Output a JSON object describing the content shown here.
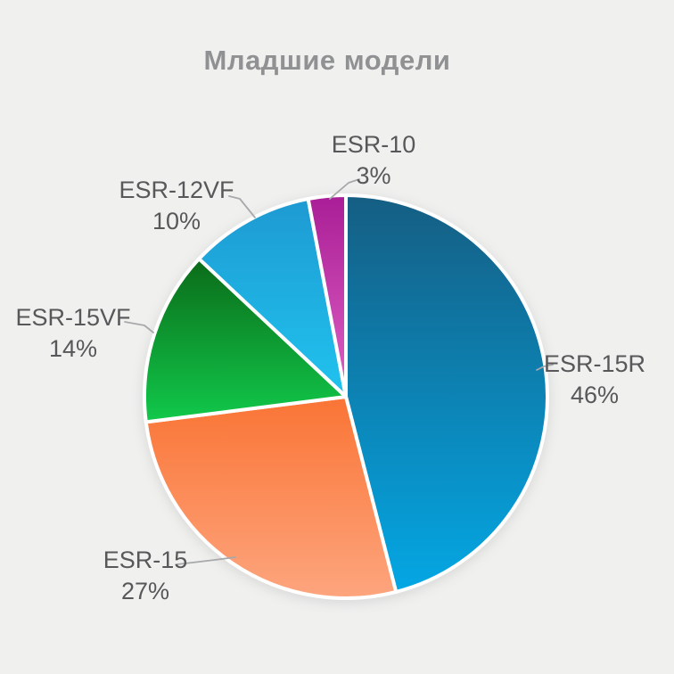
{
  "chart_data": {
    "type": "pie",
    "title": "Младшие модели",
    "unit": "%",
    "direction": "clockwise",
    "start_angle_deg": 0,
    "legend_position": "none",
    "labels_position": "outside-with-leader-lines",
    "categories": [
      "ESR-15R",
      "ESR-15",
      "ESR-15VF",
      "ESR-12VF",
      "ESR-10"
    ],
    "values": [
      46,
      27,
      14,
      10,
      3
    ],
    "slices": [
      {
        "label": "ESR-15R",
        "value": 46,
        "pct_text": "46%",
        "color_top": "#155E83",
        "color_bottom": "#04A7E4"
      },
      {
        "label": "ESR-15",
        "value": 27,
        "pct_text": "27%",
        "color_top": "#FA7435",
        "color_bottom": "#FDA57E"
      },
      {
        "label": "ESR-15VF",
        "value": 14,
        "pct_text": "14%",
        "color_top": "#0B6B19",
        "color_bottom": "#11C94B"
      },
      {
        "label": "ESR-12VF",
        "value": 10,
        "pct_text": "10%",
        "color_top": "#1E9AD2",
        "color_bottom": "#20C3EF"
      },
      {
        "label": "ESR-10",
        "value": 3,
        "pct_text": "3%",
        "color_top": "#A91E96",
        "color_bottom": "#DF61C4"
      }
    ]
  },
  "colors": {
    "background": "#F0F0EF",
    "title_text": "#8F9193",
    "label_text": "#58585A",
    "leader_line": "#A7A9AB",
    "slice_separator": "#FFFFFF"
  }
}
